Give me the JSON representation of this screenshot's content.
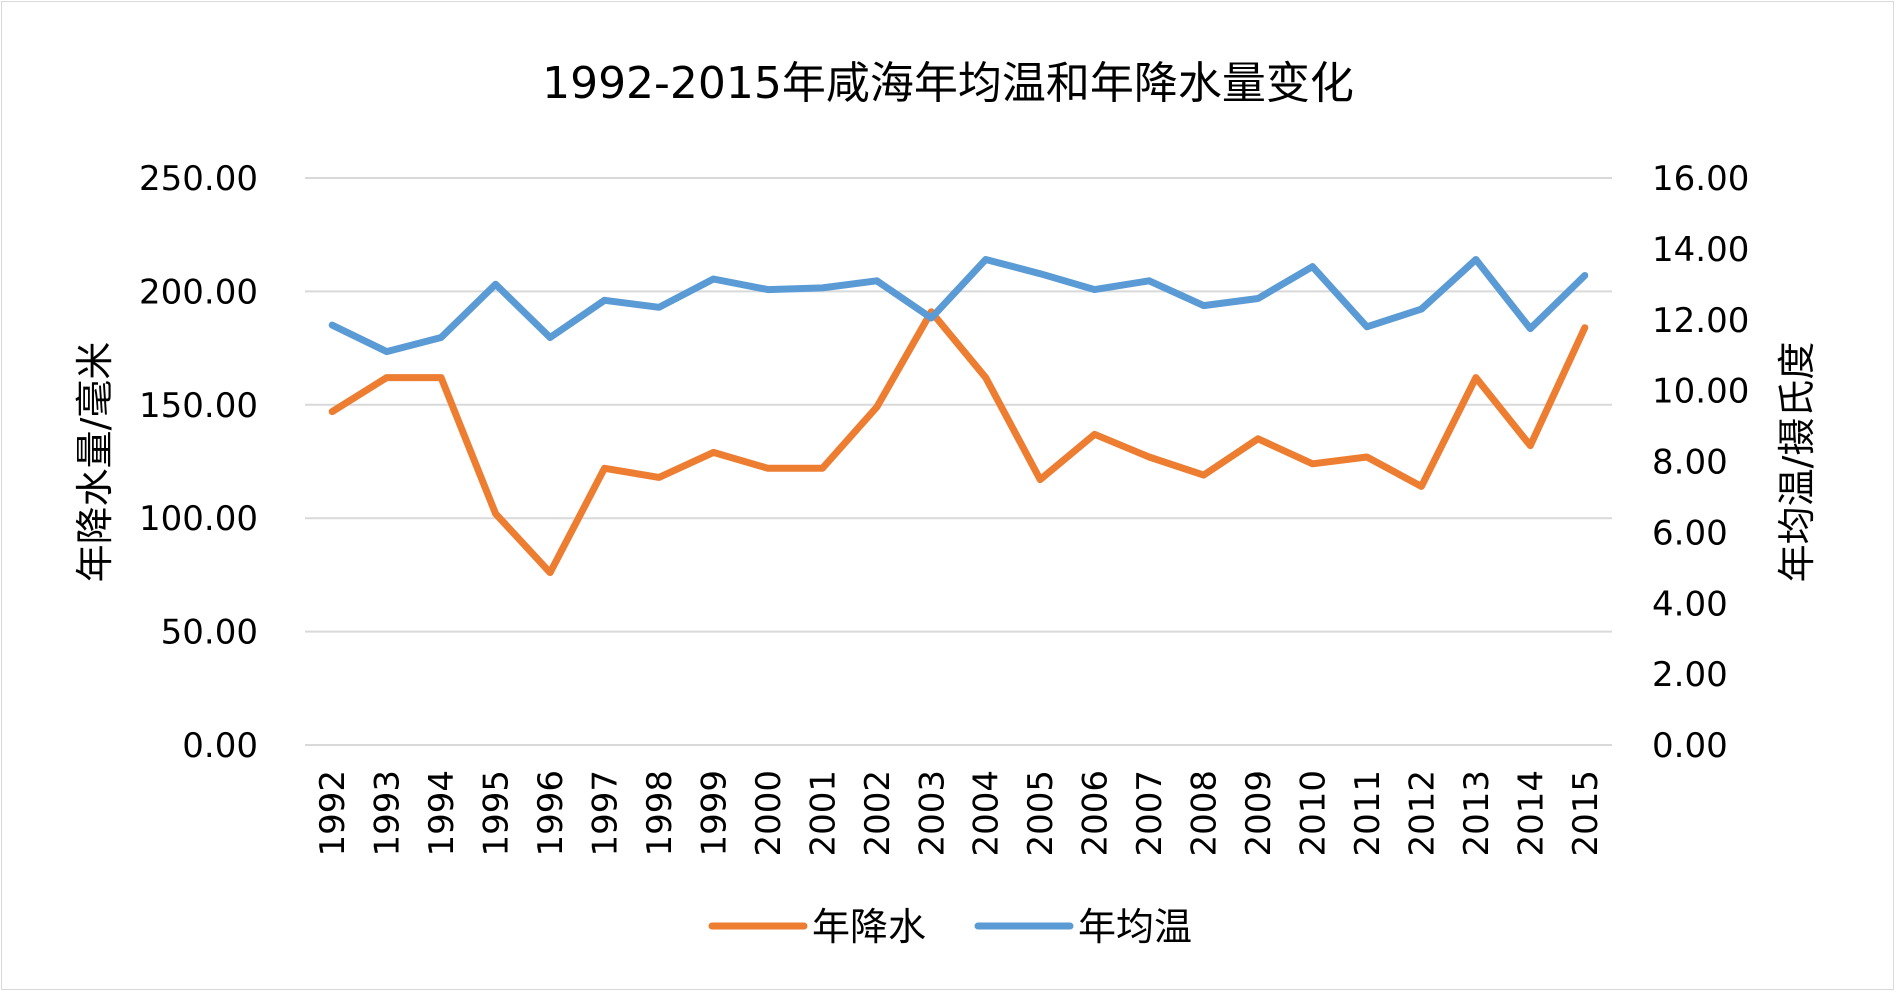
{
  "chart_data": {
    "type": "line",
    "title": "1992-2015年咸海年均温和年降水量变化",
    "categories": [
      "1992",
      "1993",
      "1994",
      "1995",
      "1996",
      "1997",
      "1998",
      "1999",
      "2000",
      "2001",
      "2002",
      "2003",
      "2004",
      "2005",
      "2006",
      "2007",
      "2008",
      "2009",
      "2010",
      "2011",
      "2012",
      "2013",
      "2014",
      "2015"
    ],
    "y_left": {
      "label": "年降水量/毫米",
      "range": [
        0,
        250
      ],
      "ticks": [
        "0.00",
        "50.00",
        "100.00",
        "150.00",
        "200.00",
        "250.00"
      ]
    },
    "y_right": {
      "label": "年均温/摄氏度",
      "range": [
        0,
        16
      ],
      "ticks": [
        "0.00",
        "2.00",
        "4.00",
        "6.00",
        "8.00",
        "10.00",
        "12.00",
        "14.00",
        "16.00"
      ]
    },
    "series": [
      {
        "name": "年降水",
        "axis": "left",
        "color": "#ED7D31",
        "values": [
          147,
          162,
          162,
          102,
          76,
          122,
          118,
          129,
          122,
          122,
          149,
          191,
          162,
          117,
          137,
          127,
          119,
          135,
          124,
          127,
          114,
          162,
          132,
          184
        ]
      },
      {
        "name": "年均温",
        "axis": "right",
        "color": "#5B9BD5",
        "values": [
          11.85,
          11.1,
          11.5,
          13.0,
          11.5,
          12.55,
          12.35,
          13.15,
          12.85,
          12.9,
          13.1,
          12.05,
          13.7,
          13.3,
          12.85,
          13.1,
          12.4,
          12.6,
          13.5,
          11.8,
          12.3,
          13.7,
          11.75,
          13.25
        ]
      }
    ],
    "grid": true,
    "legend_position": "bottom"
  }
}
